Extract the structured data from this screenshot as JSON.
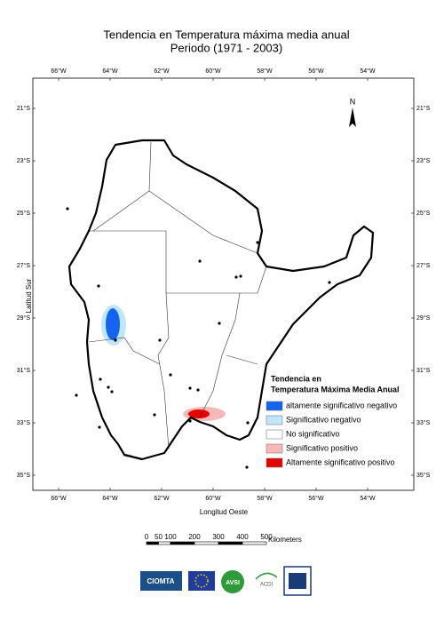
{
  "header": {
    "title": "Tendencia en Temperatura máxima media anual",
    "subtitle": "Periodo  (1971 - 2003)"
  },
  "map": {
    "lon_labels": [
      "66°W",
      "64°W",
      "62°W",
      "60°W",
      "58°W",
      "56°W",
      "54°W"
    ],
    "lat_labels": [
      "21°S",
      "23°S",
      "25°S",
      "27°S",
      "29°S",
      "31°S",
      "33°S",
      "35°S"
    ],
    "x_axis_label": "Longitud Oeste",
    "y_axis_label": "Latitud Sur",
    "north": "N"
  },
  "legend": {
    "title": [
      "Tendencia en",
      "Temperatura Máxima Media Anual"
    ],
    "items": [
      {
        "label": "altamente significativo negativo",
        "color": "#1464f0"
      },
      {
        "label": "Significativo  negativo",
        "color": "#bfe6fa"
      },
      {
        "label": "No significativo",
        "color": "#ffffff"
      },
      {
        "label": "Significativo positivo",
        "color": "#f7b8b8"
      },
      {
        "label": "Altamente significativo positivo",
        "color": "#e60000"
      }
    ]
  },
  "scale_bar": {
    "ticks": [
      0,
      50,
      100,
      200,
      300,
      400,
      500
    ],
    "unit": "Kilometers"
  },
  "logos": [
    "CIOMTA",
    "AVSI",
    "ACDI"
  ]
}
